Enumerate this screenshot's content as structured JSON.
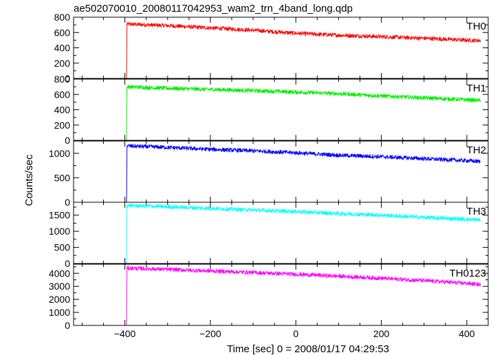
{
  "chart_data": {
    "type": "line",
    "title": "ae502070010_20080117042953_wam2_trn_4band_long.qdp",
    "xlabel": "Time [sec] 0 = 2008/01/17 04:29:53",
    "ylabel": "Counts/sec",
    "xlim": [
      -520,
      450
    ],
    "xticks": [
      -400,
      -200,
      0,
      200,
      400
    ],
    "xtick_labels": [
      "−400",
      "−200",
      "0",
      "200",
      "400"
    ],
    "burst_start": -395,
    "pre_burst_level": 0,
    "x_range_data": [
      -500,
      432
    ],
    "panels": [
      {
        "name": "TH0",
        "color": "#ff0000",
        "ylim": [
          0,
          800
        ],
        "yticks": [
          0,
          200,
          400,
          600,
          800
        ],
        "points": [
          [
            -395,
            710
          ],
          [
            -300,
            690
          ],
          [
            -200,
            660
          ],
          [
            -100,
            630
          ],
          [
            0,
            590
          ],
          [
            100,
            565
          ],
          [
            200,
            545
          ],
          [
            300,
            525
          ],
          [
            400,
            500
          ],
          [
            432,
            495
          ]
        ]
      },
      {
        "name": "TH1",
        "color": "#00ee00",
        "ylim": [
          0,
          800
        ],
        "yticks": [
          0,
          200,
          400,
          600,
          800
        ],
        "points": [
          [
            -395,
            700
          ],
          [
            -300,
            680
          ],
          [
            -200,
            665
          ],
          [
            -100,
            650
          ],
          [
            0,
            630
          ],
          [
            100,
            610
          ],
          [
            200,
            580
          ],
          [
            300,
            555
          ],
          [
            400,
            530
          ],
          [
            432,
            520
          ]
        ]
      },
      {
        "name": "TH2",
        "color": "#0000ff",
        "ylim": [
          0,
          1250
        ],
        "yticks": [
          0,
          500,
          1000
        ],
        "points": [
          [
            -395,
            1150
          ],
          [
            -300,
            1120
          ],
          [
            -200,
            1080
          ],
          [
            -100,
            1050
          ],
          [
            0,
            1010
          ],
          [
            100,
            960
          ],
          [
            200,
            930
          ],
          [
            300,
            890
          ],
          [
            400,
            850
          ],
          [
            432,
            830
          ]
        ]
      },
      {
        "name": "TH3",
        "color": "#00ffff",
        "ylim": [
          0,
          1900
        ],
        "yticks": [
          0,
          500,
          1000,
          1500
        ],
        "points": [
          [
            -395,
            1800
          ],
          [
            -300,
            1760
          ],
          [
            -200,
            1710
          ],
          [
            -100,
            1660
          ],
          [
            0,
            1610
          ],
          [
            100,
            1550
          ],
          [
            200,
            1500
          ],
          [
            300,
            1430
          ],
          [
            400,
            1370
          ],
          [
            432,
            1350
          ]
        ]
      },
      {
        "name": "TH0123",
        "color": "#ff00ff",
        "ylim": [
          0,
          4700
        ],
        "yticks": [
          0,
          1000,
          2000,
          3000,
          4000
        ],
        "points": [
          [
            -395,
            4400
          ],
          [
            -300,
            4300
          ],
          [
            -200,
            4180
          ],
          [
            -100,
            4060
          ],
          [
            0,
            3930
          ],
          [
            100,
            3780
          ],
          [
            200,
            3620
          ],
          [
            300,
            3440
          ],
          [
            400,
            3230
          ],
          [
            432,
            3130
          ]
        ]
      }
    ]
  }
}
